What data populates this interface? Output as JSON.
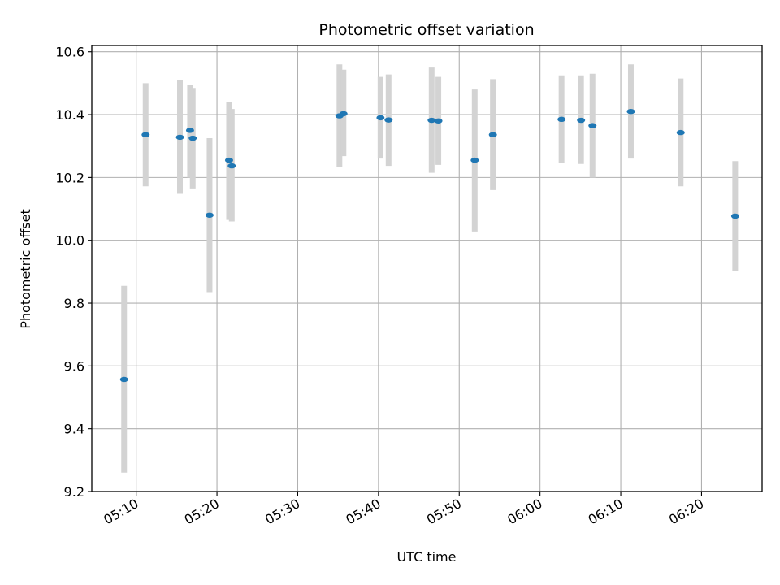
{
  "chart_data": {
    "type": "scatter",
    "title": "Photometric offset variation",
    "xlabel": "UTC time",
    "ylabel": "Photometric offset",
    "ylim": [
      9.2,
      10.62
    ],
    "xlim": [
      "05:04:30",
      "06:27:30"
    ],
    "yticks": [
      9.2,
      9.4,
      9.6,
      9.8,
      10.0,
      10.2,
      10.4,
      10.6
    ],
    "ytick_labels": [
      "9.2",
      "9.4",
      "9.6",
      "9.8",
      "10.0",
      "10.2",
      "10.4",
      "10.6"
    ],
    "xticks": [
      "05:10",
      "05:20",
      "05:30",
      "05:40",
      "05:50",
      "06:00",
      "06:10",
      "06:20"
    ],
    "grid": true,
    "colors": {
      "point": "#1f77b4",
      "errorbar": "#d3d3d3",
      "grid": "#b0b0b0"
    },
    "points": [
      {
        "x": "05:08:30",
        "y": 9.557,
        "ylo": 9.26,
        "yhi": 9.855
      },
      {
        "x": "05:11:10",
        "y": 10.336,
        "ylo": 10.172,
        "yhi": 10.5
      },
      {
        "x": "05:15:25",
        "y": 10.328,
        "ylo": 10.148,
        "yhi": 10.51
      },
      {
        "x": "05:16:40",
        "y": 10.35,
        "ylo": 10.2,
        "yhi": 10.495
      },
      {
        "x": "05:17:00",
        "y": 10.325,
        "ylo": 10.165,
        "yhi": 10.485
      },
      {
        "x": "05:19:05",
        "y": 10.08,
        "ylo": 9.835,
        "yhi": 10.325
      },
      {
        "x": "05:21:30",
        "y": 10.255,
        "ylo": 10.065,
        "yhi": 10.44
      },
      {
        "x": "05:21:50",
        "y": 10.237,
        "ylo": 10.06,
        "yhi": 10.418
      },
      {
        "x": "05:35:10",
        "y": 10.396,
        "ylo": 10.232,
        "yhi": 10.56
      },
      {
        "x": "05:35:40",
        "y": 10.403,
        "ylo": 10.268,
        "yhi": 10.543
      },
      {
        "x": "05:40:15",
        "y": 10.39,
        "ylo": 10.26,
        "yhi": 10.52
      },
      {
        "x": "05:41:15",
        "y": 10.383,
        "ylo": 10.237,
        "yhi": 10.528
      },
      {
        "x": "05:46:35",
        "y": 10.382,
        "ylo": 10.215,
        "yhi": 10.55
      },
      {
        "x": "05:47:25",
        "y": 10.38,
        "ylo": 10.24,
        "yhi": 10.52
      },
      {
        "x": "05:51:55",
        "y": 10.255,
        "ylo": 10.028,
        "yhi": 10.48
      },
      {
        "x": "05:54:10",
        "y": 10.336,
        "ylo": 10.16,
        "yhi": 10.513
      },
      {
        "x": "06:02:40",
        "y": 10.385,
        "ylo": 10.247,
        "yhi": 10.525
      },
      {
        "x": "06:05:05",
        "y": 10.382,
        "ylo": 10.243,
        "yhi": 10.525
      },
      {
        "x": "06:06:30",
        "y": 10.365,
        "ylo": 10.2,
        "yhi": 10.53
      },
      {
        "x": "06:11:15",
        "y": 10.41,
        "ylo": 10.26,
        "yhi": 10.56
      },
      {
        "x": "06:17:25",
        "y": 10.343,
        "ylo": 10.172,
        "yhi": 10.515
      },
      {
        "x": "06:24:10",
        "y": 10.077,
        "ylo": 9.903,
        "yhi": 10.252
      }
    ]
  }
}
